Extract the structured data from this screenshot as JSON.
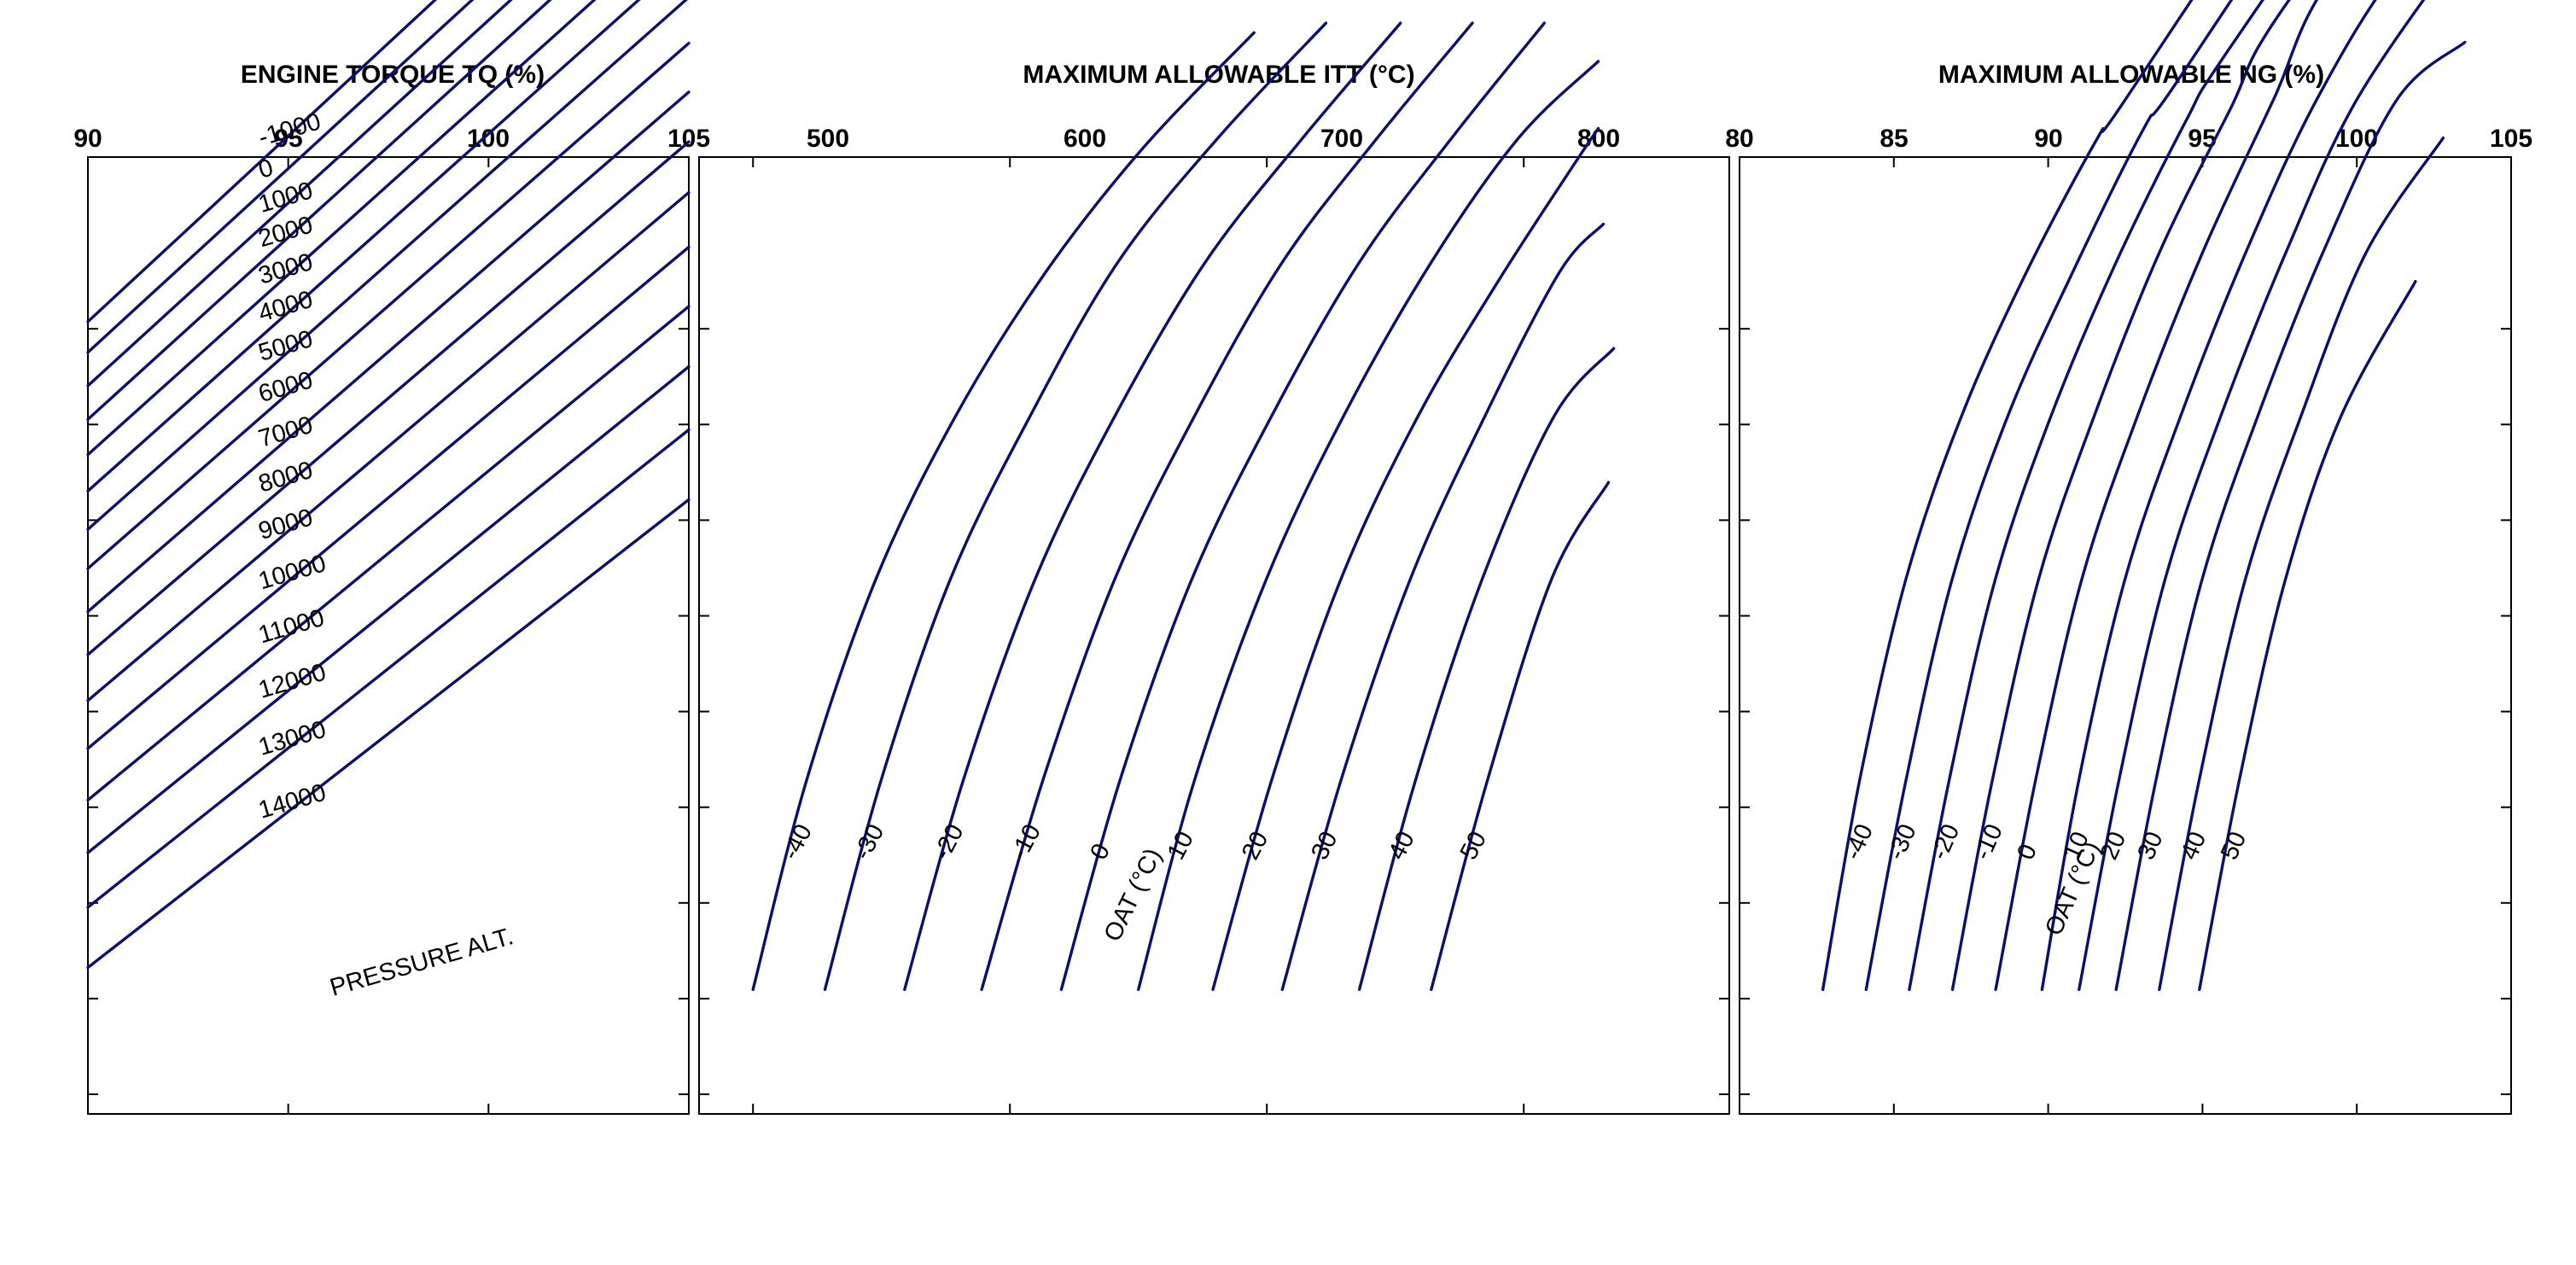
{
  "chart_data": [
    {
      "type": "line",
      "title": "ENGINE TORQUE TQ (%)",
      "x_ticks": [
        "90",
        "95",
        "100",
        "105"
      ],
      "xlim": [
        90,
        105
      ],
      "series_label": "PRESSURE ALT.",
      "series": [
        {
          "name": "14000",
          "x": [
            90,
            105
          ],
          "y": [
            1.53,
            6.42
          ]
        },
        {
          "name": "13000",
          "x": [
            90,
            105
          ],
          "y": [
            2.16,
            7.15
          ]
        },
        {
          "name": "12000",
          "x": [
            90,
            105
          ],
          "y": [
            2.73,
            7.81
          ]
        },
        {
          "name": "11000",
          "x": [
            90,
            105
          ],
          "y": [
            3.28,
            8.44
          ]
        },
        {
          "name": "10000",
          "x": [
            90,
            105
          ],
          "y": [
            3.82,
            9.06
          ]
        },
        {
          "name": "9000",
          "x": [
            90,
            105
          ],
          "y": [
            4.32,
            9.63
          ]
        },
        {
          "name": "8000",
          "x": [
            90,
            105
          ],
          "y": [
            4.8,
            10.16
          ]
        },
        {
          "name": "7000",
          "x": [
            90,
            105
          ],
          "y": [
            5.25,
            10.68
          ]
        },
        {
          "name": "6000",
          "x": [
            90,
            105
          ],
          "y": [
            5.7,
            11.19
          ]
        },
        {
          "name": "5000",
          "x": [
            90,
            105
          ],
          "y": [
            6.11,
            11.67
          ]
        },
        {
          "name": "4000",
          "x": [
            90,
            105
          ],
          "y": [
            6.51,
            12.11
          ]
        },
        {
          "name": "3000",
          "x": [
            90,
            105
          ],
          "y": [
            6.89,
            12.53
          ]
        },
        {
          "name": "2000",
          "x": [
            90,
            105
          ],
          "y": [
            7.26,
            12.96
          ]
        },
        {
          "name": "1000",
          "x": [
            90,
            105
          ],
          "y": [
            7.61,
            13.34
          ]
        },
        {
          "name": "0",
          "x": [
            90,
            105
          ],
          "y": [
            7.96,
            13.72
          ]
        },
        {
          "name": "-1000",
          "x": [
            90,
            105
          ],
          "y": [
            8.28,
            14.1
          ]
        }
      ]
    },
    {
      "type": "line",
      "title": "MAXIMUM ALLOWABLE ITT (°C)",
      "x_ticks": [
        "500",
        "600",
        "700",
        "800"
      ],
      "xlim": [
        479,
        880
      ],
      "series_label": "OAT (°C)",
      "series": [
        {
          "name": "-40",
          "x": [
            500,
            521,
            548,
            579,
            614,
            652,
            695
          ],
          "y": [
            1.3,
            3.5,
            5.6,
            7.3,
            8.8,
            10.1,
            11.3
          ]
        },
        {
          "name": "-30",
          "x": [
            528,
            550,
            577,
            608,
            642,
            681,
            723
          ],
          "y": [
            1.3,
            3.5,
            5.6,
            7.3,
            8.9,
            10.2,
            11.4
          ]
        },
        {
          "name": "-20",
          "x": [
            559,
            582,
            610,
            641,
            676,
            714,
            752
          ],
          "y": [
            1.3,
            3.5,
            5.6,
            7.3,
            8.9,
            10.2,
            11.4
          ]
        },
        {
          "name": "-10",
          "x": [
            589,
            613,
            641,
            672,
            706,
            743,
            780
          ],
          "y": [
            1.3,
            3.5,
            5.6,
            7.3,
            8.9,
            10.2,
            11.4
          ]
        },
        {
          "name": "0",
          "x": [
            620,
            643,
            671,
            702,
            736,
            772,
            808
          ],
          "y": [
            1.3,
            3.5,
            5.6,
            7.3,
            8.9,
            10.2,
            11.4
          ]
        },
        {
          "name": "10",
          "x": [
            650,
            672,
            700,
            730,
            764,
            798,
            829
          ],
          "y": [
            1.3,
            3.5,
            5.6,
            7.3,
            8.9,
            10.2,
            11.0
          ]
        },
        {
          "name": "20",
          "x": [
            679,
            702,
            729,
            759,
            790,
            819,
            829
          ],
          "y": [
            1.3,
            3.5,
            5.6,
            7.3,
            8.7,
            9.9,
            10.3
          ]
        },
        {
          "name": "30",
          "x": [
            706,
            729,
            756,
            785,
            814,
            831
          ],
          "y": [
            1.3,
            3.5,
            5.6,
            7.3,
            8.8,
            9.3
          ]
        },
        {
          "name": "40",
          "x": [
            736,
            758,
            784,
            812,
            835
          ],
          "y": [
            1.3,
            3.5,
            5.6,
            7.3,
            8.0
          ]
        },
        {
          "name": "50",
          "x": [
            764,
            786,
            811,
            833
          ],
          "y": [
            1.3,
            3.5,
            5.6,
            6.6
          ]
        }
      ]
    },
    {
      "type": "line",
      "title": "MAXIMUM ALLOWABLE NG (%)",
      "x_ticks": [
        "80",
        "85",
        "90",
        "95",
        "100",
        "105"
      ],
      "xlim": [
        80,
        105
      ],
      "series_label": "OAT (°C)",
      "series": [
        {
          "name": "-40",
          "x": [
            82.7,
            83.9,
            85.4,
            87.2,
            89.3,
            91.6,
            92.5,
            99.7
          ],
          "y": [
            1.3,
            3.5,
            5.6,
            7.3,
            8.8,
            10.2,
            10.6,
            14.1
          ]
        },
        {
          "name": "-30",
          "x": [
            84.1,
            85.4,
            86.9,
            88.7,
            90.8,
            93.1,
            94.2,
            101.0
          ],
          "y": [
            1.3,
            3.5,
            5.6,
            7.3,
            8.8,
            10.3,
            10.8,
            14.1
          ]
        },
        {
          "name": "-20",
          "x": [
            85.5,
            86.8,
            88.3,
            90.1,
            92.2,
            94.5,
            95.8,
            102.2
          ],
          "y": [
            1.3,
            3.5,
            5.6,
            7.3,
            8.9,
            10.4,
            11.1,
            14.1
          ]
        },
        {
          "name": "-10",
          "x": [
            86.9,
            88.2,
            89.7,
            91.5,
            93.6,
            95.9,
            97.5,
            103.5
          ],
          "y": [
            1.3,
            3.5,
            5.6,
            7.3,
            9.0,
            10.5,
            11.5,
            14.1
          ]
        },
        {
          "name": "0",
          "x": [
            88.3,
            89.6,
            91.1,
            92.9,
            95.0,
            97.3,
            99.2,
            104.8
          ],
          "y": [
            1.3,
            3.5,
            5.6,
            7.3,
            9.0,
            10.6,
            11.9,
            14.2
          ]
        },
        {
          "name": "10",
          "x": [
            89.8,
            91.0,
            92.5,
            94.3,
            96.4,
            98.7,
            101.4,
            105.0
          ],
          "y": [
            1.3,
            3.5,
            5.6,
            7.3,
            9.0,
            10.6,
            12.0,
            13.2
          ]
        },
        {
          "name": "20",
          "x": [
            91.0,
            92.3,
            93.8,
            95.6,
            97.7,
            100.0,
            103.4
          ],
          "y": [
            1.3,
            3.5,
            5.6,
            7.3,
            9.0,
            10.6,
            12.2
          ]
        },
        {
          "name": "30",
          "x": [
            92.2,
            93.5,
            95.0,
            96.8,
            98.9,
            101.3,
            103.5
          ],
          "y": [
            1.3,
            3.5,
            5.6,
            7.3,
            9.0,
            10.6,
            11.2
          ]
        },
        {
          "name": "40",
          "x": [
            93.6,
            94.9,
            96.4,
            98.2,
            100.3,
            102.8
          ],
          "y": [
            1.3,
            3.5,
            5.6,
            7.3,
            9.0,
            10.2
          ]
        },
        {
          "name": "50",
          "x": [
            94.9,
            96.2,
            97.7,
            99.5,
            101.9
          ],
          "y": [
            1.3,
            3.5,
            5.6,
            7.3,
            8.7
          ]
        }
      ]
    }
  ]
}
